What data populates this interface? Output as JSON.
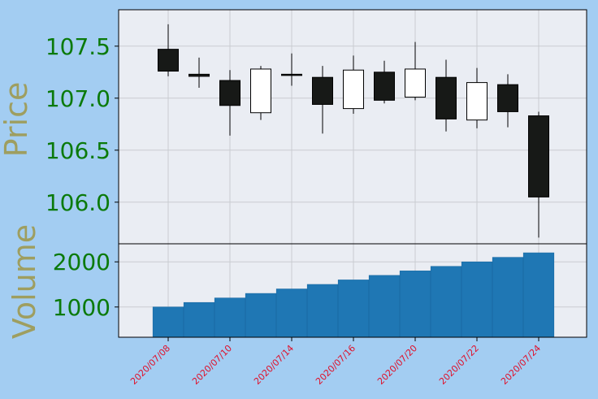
{
  "chart_data": {
    "type": "candlestick",
    "dates": [
      "2020/07/08",
      "2020/07/09",
      "2020/07/10",
      "2020/07/13",
      "2020/07/14",
      "2020/07/15",
      "2020/07/16",
      "2020/07/17",
      "2020/07/20",
      "2020/07/21",
      "2020/07/22",
      "2020/07/23",
      "2020/07/24"
    ],
    "x_tick_labels": [
      "2020/07/08",
      "2020/07/10",
      "2020/07/14",
      "2020/07/16",
      "2020/07/20",
      "2020/07/22",
      "2020/07/24"
    ],
    "x_tick_index": [
      0,
      2,
      4,
      6,
      8,
      10,
      12
    ],
    "ohlc": [
      {
        "open": 107.47,
        "high": 107.71,
        "low": 107.21,
        "close": 107.26
      },
      {
        "open": 107.23,
        "high": 107.39,
        "low": 107.1,
        "close": 107.21
      },
      {
        "open": 107.17,
        "high": 107.27,
        "low": 106.64,
        "close": 106.93
      },
      {
        "open": 106.86,
        "high": 107.31,
        "low": 106.79,
        "close": 107.28
      },
      {
        "open": 107.23,
        "high": 107.43,
        "low": 107.12,
        "close": 107.22
      },
      {
        "open": 107.2,
        "high": 107.31,
        "low": 106.66,
        "close": 106.94
      },
      {
        "open": 106.9,
        "high": 107.41,
        "low": 106.85,
        "close": 107.27
      },
      {
        "open": 107.25,
        "high": 107.36,
        "low": 106.95,
        "close": 106.98
      },
      {
        "open": 107.01,
        "high": 107.54,
        "low": 106.98,
        "close": 107.28
      },
      {
        "open": 107.2,
        "high": 107.37,
        "low": 106.68,
        "close": 106.8
      },
      {
        "open": 106.79,
        "high": 107.29,
        "low": 106.71,
        "close": 107.15
      },
      {
        "open": 107.13,
        "high": 107.23,
        "low": 106.72,
        "close": 106.87
      },
      {
        "open": 106.83,
        "high": 106.87,
        "low": 105.66,
        "close": 106.05
      }
    ],
    "volume": [
      1000,
      1100,
      1200,
      1300,
      1400,
      1500,
      1600,
      1700,
      1800,
      1900,
      2000,
      2100,
      2200
    ],
    "price_ylabel": "Price",
    "volume_ylabel": "Volume",
    "price_ylim": [
      105.6,
      107.85
    ],
    "volume_ylim": [
      330,
      2400
    ],
    "price_yticks": [
      106.0,
      106.5,
      107.0,
      107.5
    ],
    "price_ytick_labels": [
      "106.0",
      "106.5",
      "107.0",
      "107.5"
    ],
    "volume_yticks": [
      1000,
      2000
    ],
    "volume_ytick_labels": [
      "1000",
      "2000"
    ],
    "grid": true,
    "colors": {
      "figure_bg": "#a3cdf2",
      "axes_bg": "#eaedf3",
      "up_candle": "#ffffff",
      "down_candle": "#171917",
      "volume_bar": "#1f77b4",
      "ytick_label": "#0b7a0b",
      "ylabel": "#9e9e60",
      "xtick_label": "#e0102a",
      "grid": "#c9ccd1"
    }
  }
}
